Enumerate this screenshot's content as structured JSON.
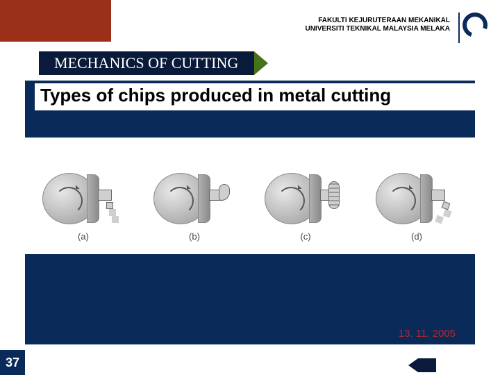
{
  "header": {
    "line1": "FAKULTI KEJURUTERAAN MEKANIKAL",
    "line2": "UNIVERSITI TEKNIKAL MALAYSIA MELAKA"
  },
  "colors": {
    "brown": "#9a2f1a",
    "navy": "#0a2a5a",
    "tab_navy": "#0a1a3a",
    "arrow_green": "#45721a",
    "date_red": "#b02a2a",
    "bg_white": "#ffffff"
  },
  "section_tab": {
    "title": "MECHANICS OF CUTTING",
    "title_fontsize": 22,
    "title_font": "Times New Roman"
  },
  "content": {
    "title": "Types of chips produced in metal cutting",
    "title_fontsize": 26
  },
  "figures": {
    "type": "infographic",
    "items": [
      {
        "label": "(a)",
        "chip_style": "continuous"
      },
      {
        "label": "(b)",
        "chip_style": "curl"
      },
      {
        "label": "(c)",
        "chip_style": "curl-long"
      },
      {
        "label": "(d)",
        "chip_style": "seg"
      }
    ],
    "cylinder_color": "#b8b8b8",
    "tool_color": "#cfcfcf",
    "label_fontsize": 13
  },
  "footer": {
    "date": "13. 11. 2005",
    "page": "37"
  }
}
